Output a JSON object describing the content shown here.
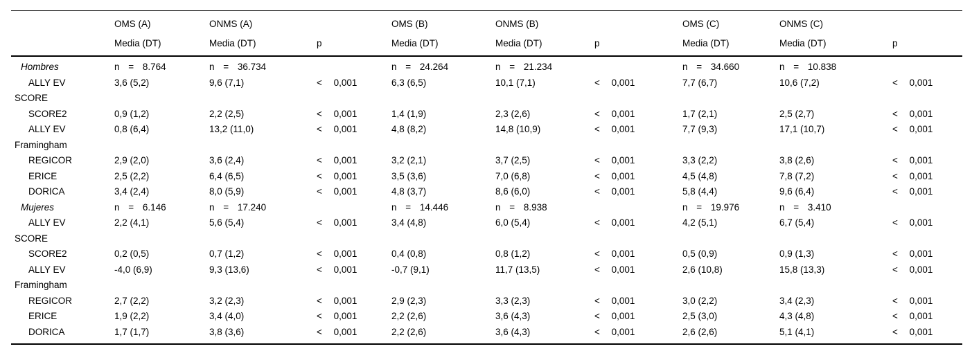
{
  "header": {
    "media_label": "Media (DT)",
    "p_label": "p",
    "group_titles": [
      "OMS (A)",
      "ONMS (A)",
      "OMS (B)",
      "ONMS (B)",
      "OMS (C)",
      "ONMS (C)"
    ]
  },
  "rows": [
    {
      "kind": "group",
      "label": [
        "Hombres"
      ],
      "cells": [
        "n = 8.764",
        "n = 36.734",
        "",
        "n = 24.264",
        "n = 21.234",
        "",
        "n = 34.660",
        "n = 10.838",
        ""
      ]
    },
    {
      "kind": "data",
      "label": [
        "ALLY EV",
        "SCORE"
      ],
      "cells": [
        "3,6 (5,2)",
        "9,6 (7,1)",
        "< 0,001",
        "6,3 (6,5)",
        "10,1 (7,1)",
        "< 0,001",
        "7,7 (6,7)",
        "10,6 (7,2)",
        "< 0,001"
      ]
    },
    {
      "kind": "data",
      "label": [
        "SCORE2"
      ],
      "cells": [
        "0,9 (1,2)",
        "2,2 (2,5)",
        "< 0,001",
        "1,4 (1,9)",
        "2,3 (2,6)",
        "< 0,001",
        "1,7 (2,1)",
        "2,5 (2,7)",
        "< 0,001"
      ]
    },
    {
      "kind": "data",
      "label": [
        "ALLY EV",
        "Framingham"
      ],
      "cells": [
        "0,8 (6,4)",
        "13,2 (11,0)",
        "< 0,001",
        "4,8 (8,2)",
        "14,8 (10,9)",
        "< 0,001",
        "7,7 (9,3)",
        "17,1 (10,7)",
        "< 0,001"
      ]
    },
    {
      "kind": "data",
      "label": [
        "REGICOR"
      ],
      "cells": [
        "2,9 (2,0)",
        "3,6 (2,4)",
        "< 0,001",
        "3,2 (2,1)",
        "3,7 (2,5)",
        "< 0,001",
        "3,3 (2,2)",
        "3,8 (2,6)",
        "< 0,001"
      ]
    },
    {
      "kind": "data",
      "label": [
        "ERICE"
      ],
      "cells": [
        "2,5 (2,2)",
        "6,4 (6,5)",
        "< 0,001",
        "3,5 (3,6)",
        "7,0 (6,8)",
        "< 0,001",
        "4,5 (4,8)",
        "7,8 (7,2)",
        "< 0,001"
      ]
    },
    {
      "kind": "data",
      "label": [
        "DORICA"
      ],
      "cells": [
        "3,4 (2,4)",
        "8,0 (5,9)",
        "< 0,001",
        "4,8 (3,7)",
        "8,6 (6,0)",
        "< 0,001",
        "5,8 (4,4)",
        "9,6 (6,4)",
        "< 0,001"
      ]
    },
    {
      "kind": "group",
      "label": [
        "Mujeres"
      ],
      "cells": [
        "n = 6.146",
        "n = 17.240",
        "",
        "n = 14.446",
        "n = 8.938",
        "",
        "n = 19.976",
        "n = 3.410",
        ""
      ]
    },
    {
      "kind": "data",
      "label": [
        "ALLY EV",
        "SCORE"
      ],
      "cells": [
        "2,2 (4,1)",
        "5,6 (5,4)",
        "< 0,001",
        "3,4 (4,8)",
        "6,0 (5,4)",
        "< 0,001",
        "4,2 (5,1)",
        "6,7 (5,4)",
        "< 0,001"
      ]
    },
    {
      "kind": "data",
      "label": [
        "SCORE2"
      ],
      "cells": [
        "0,2 (0,5)",
        "0,7 (1,2)",
        "< 0,001",
        "0,4 (0,8)",
        "0,8 (1,2)",
        "< 0,001",
        "0,5 (0,9)",
        "0,9 (1,3)",
        "< 0,001"
      ]
    },
    {
      "kind": "data",
      "label": [
        "ALLY EV",
        "Framingham"
      ],
      "cells": [
        "-4,0 (6,9)",
        "9,3 (13,6)",
        "< 0,001",
        "-0,7 (9,1)",
        "11,7 (13,5)",
        "< 0,001",
        "2,6 (10,8)",
        "15,8 (13,3)",
        "< 0,001"
      ]
    },
    {
      "kind": "data",
      "label": [
        "REGICOR"
      ],
      "cells": [
        "2,7 (2,2)",
        "3,2 (2,3)",
        "< 0,001",
        "2,9 (2,3)",
        "3,3 (2,3)",
        "< 0,001",
        "3,0 (2,2)",
        "3,4 (2,3)",
        "< 0,001"
      ]
    },
    {
      "kind": "data",
      "label": [
        "ERICE"
      ],
      "cells": [
        "1,9 (2,2)",
        "3,4 (4,0)",
        "< 0,001",
        "2,2 (2,6)",
        "3,6 (4,3)",
        "< 0,001",
        "2,5 (3,0)",
        "4,3 (4,8)",
        "< 0,001"
      ]
    },
    {
      "kind": "data",
      "label": [
        "DORICA"
      ],
      "cells": [
        "1,7 (1,7)",
        "3,8 (3,6)",
        "< 0,001",
        "2,2 (2,6)",
        "3,6 (4,3)",
        "< 0,001",
        "2,6 (2,6)",
        "5,1 (4,1)",
        "< 0,001"
      ]
    }
  ]
}
